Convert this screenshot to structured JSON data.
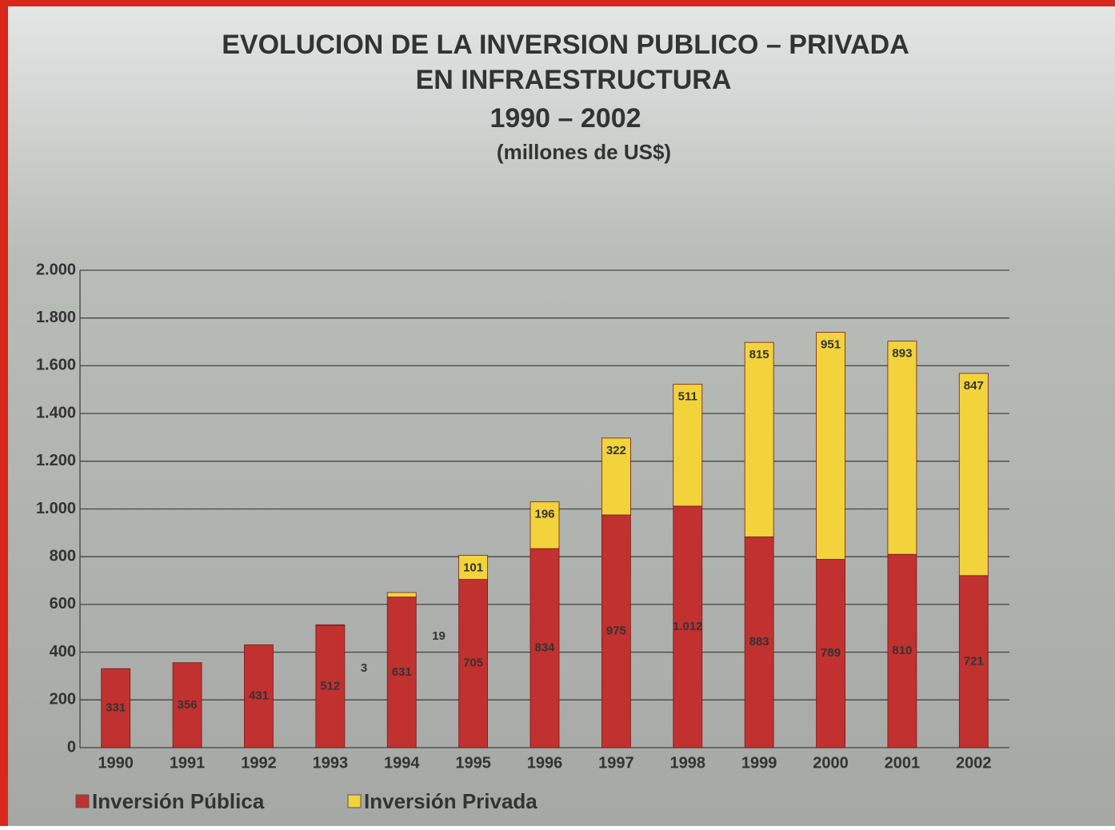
{
  "chart_data": {
    "type": "stacked_bar",
    "title": [
      "EVOLUCION DE LA INVERSION PUBLICO – PRIVADA",
      "EN INFRAESTRUCTURA"
    ],
    "period": "1990 – 2002",
    "subtitle": "(millones de US$)",
    "categories": [
      "1990",
      "1991",
      "1992",
      "1993",
      "1994",
      "1995",
      "1996",
      "1997",
      "1998",
      "1999",
      "2000",
      "2001",
      "2002"
    ],
    "series": [
      {
        "name": "Inversión Pública",
        "color": "#c0312f",
        "values": [
          331,
          356,
          431,
          512,
          631,
          705,
          834,
          975,
          1012,
          883,
          789,
          810,
          721
        ],
        "value_labels": [
          "331",
          "356",
          "431",
          "512",
          "631",
          "705",
          "834",
          "975",
          "1.012",
          "883",
          "789",
          "810",
          "721"
        ]
      },
      {
        "name": "Inversión Privada",
        "color": "#f2d33c",
        "values": [
          null,
          null,
          null,
          3,
          19,
          101,
          196,
          322,
          511,
          815,
          951,
          893,
          847
        ]
      }
    ],
    "ylim": [
      0,
      2000
    ],
    "yticks": [
      0,
      200,
      400,
      600,
      800,
      {
        "value": 1000,
        "label": "1.000"
      },
      {
        "value": 1200,
        "label": "1.200"
      },
      {
        "value": 1400,
        "label": "1.400"
      },
      {
        "value": 1600,
        "label": "1.600"
      },
      {
        "value": 1800,
        "label": "1.800"
      },
      {
        "value": 2000,
        "label": "2.000"
      }
    ],
    "grid": true
  }
}
